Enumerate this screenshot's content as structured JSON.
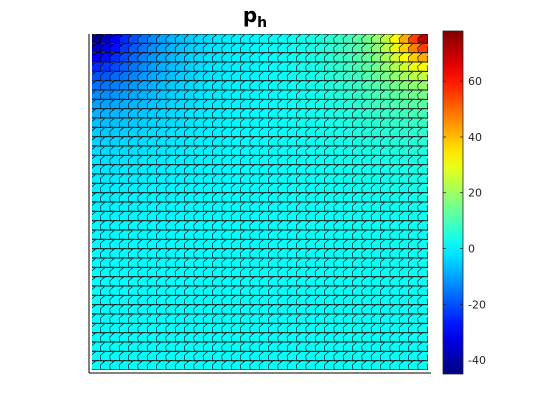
{
  "chart_data": {
    "type": "heatmap",
    "title": "p",
    "title_subscript": "h",
    "xlabel": "",
    "ylabel": "",
    "grid": false,
    "mesh": "polygonal (hexagonal-like) cells with black edges, 36 columns x 36 rows",
    "colormap": "jet",
    "colorbar": {
      "location": "right",
      "clim": [
        -45,
        78
      ],
      "ticks": [
        -40,
        -20,
        0,
        20,
        40,
        60
      ],
      "tick_labels": [
        "-40",
        "-20",
        "0",
        "20",
        "40",
        "60"
      ]
    },
    "field": {
      "description": "approximately uniform value near 0 across the domain; minimum near -45 at the top-left corner, maximum near 78 at the top-right corner",
      "background_value": 2,
      "min": {
        "value": -45,
        "location": "top-left"
      },
      "max": {
        "value": 78,
        "location": "top-right"
      }
    }
  }
}
